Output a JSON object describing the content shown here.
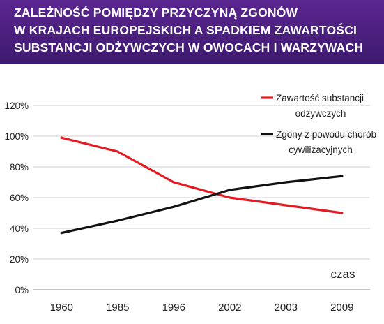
{
  "chart_data": {
    "type": "line",
    "title_lines": [
      "ZALEŻNOŚĆ POMIĘDZY PRZYCZYNĄ ZGONÓW",
      "W KRAJACH EUROPEJSKICH A SPADKIEM ZAWARTOŚCI",
      "SUBSTANCJI ODŻYWCZYCH W OWOCACH I WARZYWACH"
    ],
    "categories": [
      "1960",
      "1985",
      "1996",
      "2002",
      "2003",
      "2009"
    ],
    "series": [
      {
        "name_lines": [
          "Zawartość substancji",
          "odżywczych"
        ],
        "color": "#e31b23",
        "values": [
          99,
          90,
          70,
          60,
          55,
          50
        ]
      },
      {
        "name_lines": [
          "Zgony z powodu chorób",
          "cywilizacyjnych"
        ],
        "color": "#111111",
        "values": [
          37,
          45,
          54,
          65,
          70,
          74
        ]
      }
    ],
    "y_ticks": [
      "0%",
      "20%",
      "40%",
      "60%",
      "80%",
      "100%",
      "120%"
    ],
    "ylim": [
      0,
      120
    ],
    "xlabel": "czas",
    "grid": true,
    "legend": "top-right"
  }
}
